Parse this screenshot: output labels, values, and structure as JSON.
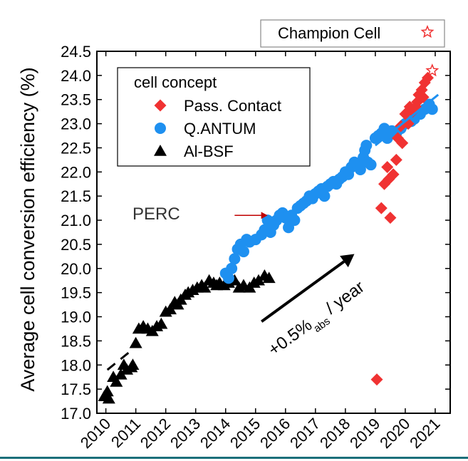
{
  "chart_data": {
    "type": "scatter",
    "ylabel": "Average cell conversion efficiency (%)",
    "xlabel": "",
    "xlim": [
      2009.7,
      2021.5
    ],
    "ylim": [
      17.0,
      24.5
    ],
    "yticks": [
      "17.0",
      "17.5",
      "18.0",
      "18.5",
      "19.0",
      "19.5",
      "20.0",
      "20.5",
      "21.0",
      "21.5",
      "22.0",
      "22.5",
      "23.0",
      "23.5",
      "24.0",
      "24.5"
    ],
    "xticks": [
      "2010",
      "2011",
      "2012",
      "2013",
      "2014",
      "2015",
      "2016",
      "2017",
      "2018",
      "2019",
      "2020",
      "2021"
    ],
    "legend_title": "cell concept",
    "legend_position": "top-left",
    "top_legend": "Champion Cell",
    "annotations": {
      "perc_label": "PERC",
      "rate_main": "+0.5%",
      "rate_sub": "abs",
      "rate_tail": " / year"
    },
    "colors": {
      "red": "#f03232",
      "blue": "#1e90f0",
      "black": "#000000"
    },
    "series": [
      {
        "name": "Pass. Contact",
        "marker": "diamond",
        "color": "#f03232",
        "points": [
          [
            2019.05,
            17.7
          ],
          [
            2019.2,
            21.25
          ],
          [
            2019.3,
            21.75
          ],
          [
            2019.45,
            21.85
          ],
          [
            2019.5,
            21.05
          ],
          [
            2019.4,
            22.1
          ],
          [
            2019.6,
            21.95
          ],
          [
            2019.7,
            22.25
          ],
          [
            2019.75,
            22.7
          ],
          [
            2019.9,
            22.6
          ],
          [
            2019.85,
            22.95
          ],
          [
            2020.0,
            23.2
          ],
          [
            2020.1,
            23.0
          ],
          [
            2020.15,
            23.35
          ],
          [
            2020.25,
            23.25
          ],
          [
            2020.35,
            23.35
          ],
          [
            2020.4,
            23.45
          ],
          [
            2020.45,
            23.6
          ],
          [
            2020.55,
            23.7
          ],
          [
            2020.6,
            23.55
          ],
          [
            2020.65,
            23.85
          ],
          [
            2020.75,
            23.95
          ]
        ]
      },
      {
        "name": "Q.ANTUM",
        "marker": "circle",
        "color": "#1e90f0",
        "points": [
          [
            2014.0,
            19.9
          ],
          [
            2014.1,
            19.8
          ],
          [
            2014.2,
            20.0
          ],
          [
            2014.3,
            20.2
          ],
          [
            2014.4,
            20.4
          ],
          [
            2014.5,
            20.5
          ],
          [
            2014.6,
            20.35
          ],
          [
            2014.7,
            20.6
          ],
          [
            2014.8,
            20.55
          ],
          [
            2015.0,
            20.6
          ],
          [
            2015.2,
            20.7
          ],
          [
            2015.3,
            20.8
          ],
          [
            2015.4,
            21.0
          ],
          [
            2015.5,
            20.75
          ],
          [
            2015.6,
            20.9
          ],
          [
            2015.7,
            21.0
          ],
          [
            2015.8,
            21.1
          ],
          [
            2015.9,
            21.15
          ],
          [
            2016.0,
            21.05
          ],
          [
            2016.1,
            20.85
          ],
          [
            2016.2,
            21.1
          ],
          [
            2016.3,
            21.0
          ],
          [
            2016.4,
            21.25
          ],
          [
            2016.5,
            21.3
          ],
          [
            2016.6,
            21.35
          ],
          [
            2016.7,
            21.4
          ],
          [
            2016.8,
            21.5
          ],
          [
            2016.9,
            21.45
          ],
          [
            2017.0,
            21.55
          ],
          [
            2017.1,
            21.6
          ],
          [
            2017.2,
            21.65
          ],
          [
            2017.3,
            21.5
          ],
          [
            2017.4,
            21.7
          ],
          [
            2017.5,
            21.75
          ],
          [
            2017.6,
            21.8
          ],
          [
            2017.7,
            21.75
          ],
          [
            2017.8,
            21.85
          ],
          [
            2017.9,
            21.9
          ],
          [
            2018.0,
            22.0
          ],
          [
            2018.1,
            21.95
          ],
          [
            2018.2,
            22.1
          ],
          [
            2018.3,
            22.2
          ],
          [
            2018.4,
            22.15
          ],
          [
            2018.5,
            22.05
          ],
          [
            2018.6,
            22.3
          ],
          [
            2018.65,
            22.45
          ],
          [
            2018.7,
            22.55
          ],
          [
            2018.75,
            22.2
          ],
          [
            2018.85,
            22.15
          ],
          [
            2019.0,
            22.7
          ],
          [
            2019.1,
            22.75
          ],
          [
            2019.2,
            22.8
          ],
          [
            2019.3,
            22.9
          ],
          [
            2019.4,
            22.7
          ],
          [
            2019.55,
            22.85
          ],
          [
            2019.7,
            22.8
          ],
          [
            2019.85,
            22.9
          ],
          [
            2020.0,
            23.0
          ],
          [
            2020.2,
            23.05
          ],
          [
            2020.3,
            23.1
          ],
          [
            2020.5,
            23.2
          ],
          [
            2020.65,
            23.3
          ],
          [
            2020.8,
            23.4
          ],
          [
            2020.9,
            23.3
          ]
        ]
      },
      {
        "name": "Al-BSF",
        "marker": "triangle",
        "color": "#000000",
        "points": [
          [
            2009.95,
            17.35
          ],
          [
            2010.05,
            17.45
          ],
          [
            2010.1,
            17.3
          ],
          [
            2010.25,
            17.75
          ],
          [
            2010.35,
            17.65
          ],
          [
            2010.5,
            17.8
          ],
          [
            2010.6,
            18.0
          ],
          [
            2010.7,
            17.9
          ],
          [
            2010.85,
            17.95
          ],
          [
            2010.9,
            18.0
          ],
          [
            2011.0,
            18.45
          ],
          [
            2011.1,
            18.75
          ],
          [
            2011.25,
            18.8
          ],
          [
            2011.4,
            18.75
          ],
          [
            2011.55,
            18.7
          ],
          [
            2011.7,
            18.8
          ],
          [
            2011.85,
            18.85
          ],
          [
            2012.0,
            19.1
          ],
          [
            2012.15,
            19.15
          ],
          [
            2012.3,
            19.3
          ],
          [
            2012.4,
            19.25
          ],
          [
            2012.5,
            19.35
          ],
          [
            2012.65,
            19.45
          ],
          [
            2012.75,
            19.5
          ],
          [
            2012.9,
            19.55
          ],
          [
            2013.05,
            19.6
          ],
          [
            2013.2,
            19.65
          ],
          [
            2013.3,
            19.6
          ],
          [
            2013.45,
            19.75
          ],
          [
            2013.6,
            19.7
          ],
          [
            2013.7,
            19.65
          ],
          [
            2013.8,
            19.7
          ],
          [
            2013.95,
            19.65
          ],
          [
            2014.1,
            19.7
          ],
          [
            2014.3,
            19.75
          ],
          [
            2014.45,
            19.6
          ],
          [
            2014.6,
            19.65
          ],
          [
            2014.8,
            19.6
          ],
          [
            2014.95,
            19.7
          ],
          [
            2015.1,
            19.75
          ],
          [
            2015.3,
            19.85
          ],
          [
            2015.45,
            19.8
          ]
        ]
      }
    ],
    "champion_point": [
      2020.9,
      24.1
    ],
    "blue_trend": [
      [
        2019.0,
        22.55
      ],
      [
        2021.1,
        23.6
      ]
    ],
    "black_trend": [
      [
        2010.05,
        17.9
      ],
      [
        2010.85,
        18.3
      ]
    ],
    "rate_arrow": [
      [
        2015.2,
        18.9
      ],
      [
        2018.3,
        20.3
      ]
    ],
    "perc_arrow": [
      [
        2014.3,
        21.1
      ],
      [
        2015.4,
        21.1
      ]
    ]
  }
}
